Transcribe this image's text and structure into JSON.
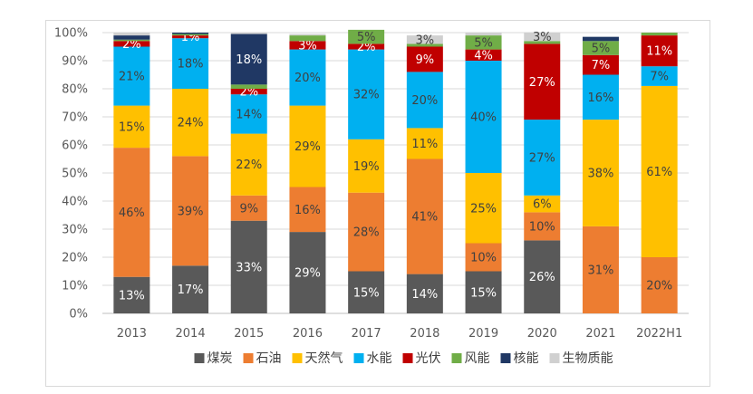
{
  "chart_data": {
    "type": "bar",
    "stacked": true,
    "percent": true,
    "title": "",
    "xlabel": "",
    "ylabel": "",
    "ylim": [
      0,
      100
    ],
    "y_ticks": [
      "0%",
      "10%",
      "20%",
      "30%",
      "40%",
      "50%",
      "60%",
      "70%",
      "80%",
      "90%",
      "100%"
    ],
    "grid": true,
    "legend_position": "bottom",
    "categories": [
      "2013",
      "2014",
      "2015",
      "2016",
      "2017",
      "2018",
      "2019",
      "2020",
      "2021",
      "2022H1"
    ],
    "series": [
      {
        "name": "煤炭",
        "color": "#595959",
        "values": [
          13,
          17,
          33,
          29,
          15,
          14,
          15,
          26,
          0,
          0
        ],
        "labels": [
          "13%",
          "17%",
          "33%",
          "29%",
          "15%",
          "14%",
          "15%",
          "26%",
          "",
          ""
        ]
      },
      {
        "name": "石油",
        "color": "#ED7D31",
        "values": [
          46,
          39,
          9,
          16,
          28,
          41,
          10,
          10,
          31,
          20
        ],
        "labels": [
          "46%",
          "39%",
          "9%",
          "16%",
          "28%",
          "41%",
          "10%",
          "10%",
          "31%",
          "20%"
        ]
      },
      {
        "name": "天然气",
        "color": "#FFC000",
        "values": [
          15,
          24,
          22,
          29,
          19,
          11,
          25,
          6,
          38,
          61
        ],
        "labels": [
          "15%",
          "24%",
          "22%",
          "29%",
          "19%",
          "11%",
          "25%",
          "6%",
          "38%",
          "61%"
        ]
      },
      {
        "name": "水能",
        "color": "#00B0F0",
        "values": [
          21,
          18,
          14,
          20,
          32,
          20,
          40,
          27,
          16,
          7
        ],
        "labels": [
          "21%",
          "18%",
          "14%",
          "20%",
          "32%",
          "20%",
          "40%",
          "27%",
          "16%",
          "7%"
        ]
      },
      {
        "name": "光伏",
        "color": "#C00000",
        "values": [
          2,
          1,
          2,
          3,
          2,
          9,
          4,
          27,
          7,
          11
        ],
        "labels": [
          "2%",
          "1%",
          "2%",
          "3%",
          "2%",
          "9%",
          "4%",
          "27%",
          "7%",
          "11%"
        ]
      },
      {
        "name": "风能",
        "color": "#70AD47",
        "values": [
          0.5,
          0.5,
          1.5,
          2,
          5,
          1,
          5,
          1,
          5,
          1
        ],
        "labels": [
          "",
          "",
          "",
          "",
          "5%",
          "",
          "5%",
          "",
          "5%",
          ""
        ]
      },
      {
        "name": "核能",
        "color": "#203864",
        "values": [
          1.5,
          0.5,
          18,
          0,
          0,
          0,
          0,
          0,
          1.5,
          0
        ],
        "labels": [
          "",
          "",
          "18%",
          "",
          "",
          "",
          "",
          "",
          "",
          ""
        ]
      },
      {
        "name": "生物质能",
        "color": "#D0D0D0",
        "values": [
          1,
          0,
          0.5,
          0.5,
          0,
          3,
          1,
          3,
          0,
          0
        ],
        "labels": [
          "",
          "",
          "",
          "",
          "",
          "3%",
          "",
          "3%",
          "",
          ""
        ]
      }
    ]
  }
}
